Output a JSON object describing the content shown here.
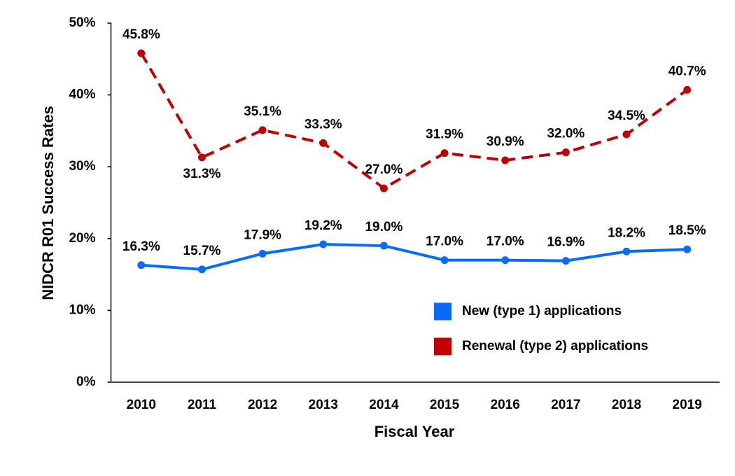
{
  "chart_data": {
    "type": "line",
    "x_label": "Fiscal Year",
    "y_label": "NIDCR R01 Success Rates",
    "categories": [
      "2010",
      "2011",
      "2012",
      "2013",
      "2014",
      "2015",
      "2016",
      "2017",
      "2018",
      "2019"
    ],
    "series": [
      {
        "name": "New (type 1) applications",
        "color": "#0a6cf5",
        "dashed": false,
        "values": [
          16.3,
          15.7,
          17.9,
          19.2,
          19.0,
          17.0,
          17.0,
          16.9,
          18.2,
          18.5
        ],
        "value_labels": [
          "16.3%",
          "15.7%",
          "17.9%",
          "19.2%",
          "19.0%",
          "17.0%",
          "17.0%",
          "16.9%",
          "18.2%",
          "18.5%"
        ]
      },
      {
        "name": "Renewal (type 2) applications",
        "color": "#c00000",
        "dashed": true,
        "values": [
          45.8,
          31.3,
          35.1,
          33.3,
          27.0,
          31.9,
          30.9,
          32.0,
          34.5,
          40.7
        ],
        "value_labels": [
          "45.8%",
          "31.3%",
          "35.1%",
          "33.3%",
          "27.0%",
          "31.9%",
          "30.9%",
          "32.0%",
          "34.5%",
          "40.7%"
        ]
      }
    ],
    "ylim": [
      0,
      50
    ],
    "yticks": [
      {
        "value": 0,
        "label": "0%"
      },
      {
        "value": 10,
        "label": "10%"
      },
      {
        "value": 20,
        "label": "20%"
      },
      {
        "value": 30,
        "label": "30%"
      },
      {
        "value": 40,
        "label": "40%"
      },
      {
        "value": 50,
        "label": "50%"
      }
    ],
    "grid": false,
    "legend": "lower right"
  }
}
